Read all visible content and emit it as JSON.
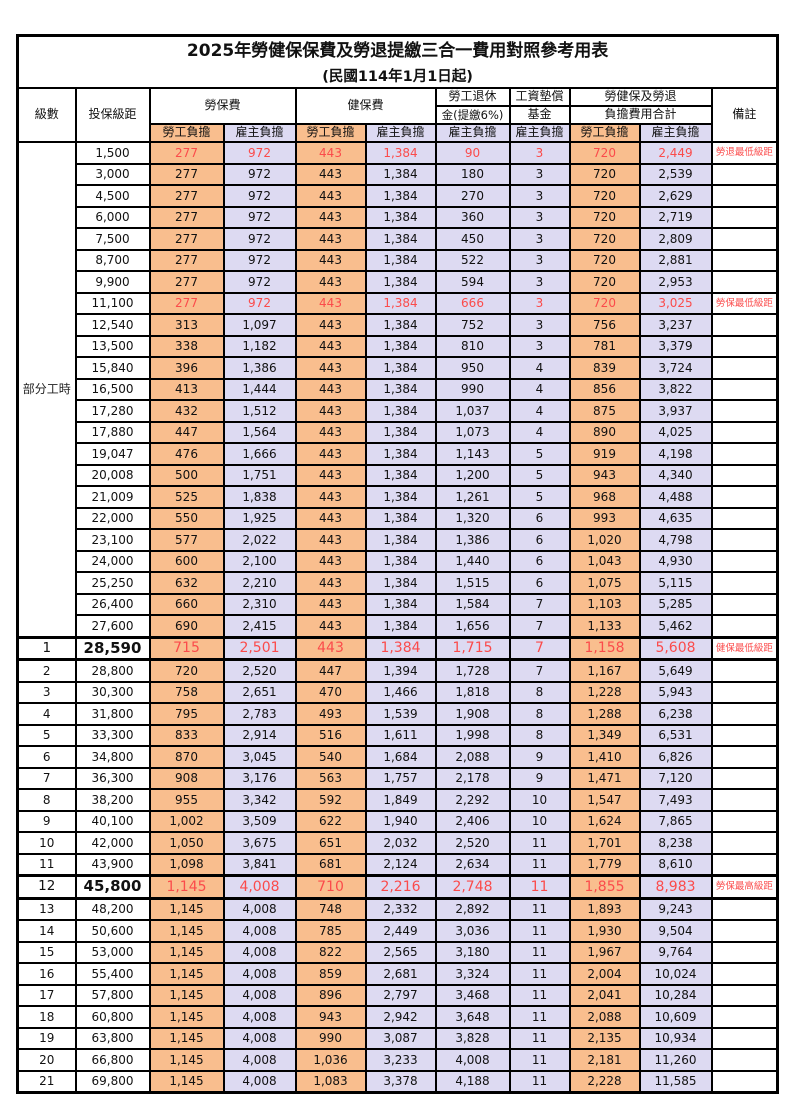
{
  "title": "2025年勞健保保費及勞退提繳三合一費用對照參考用表",
  "subtitle": "(民國114年1月1日起)",
  "header": {
    "level": "級數",
    "bracket": "投保級距",
    "labor_fee": "勞保費",
    "health_fee": "健保費",
    "pension_line1": "勞工退休",
    "pension_line2": "金(提繳6%)",
    "wage_fund_line1": "工資墊償",
    "wage_fund_line2": "基金",
    "total_line1": "勞健保及勞退",
    "total_line2": "負擔費用合計",
    "note": "備註",
    "employee_share": "勞工負擔",
    "employer_share": "雇主負擔"
  },
  "part_time_label": "部分工時",
  "part_time_rowspan": 23,
  "colors": {
    "employee_bg": "#F9BE8E",
    "employer_bg": "#DDDAF2",
    "highlight_text": "#FB4B4B",
    "border": "#000000",
    "text": "#111111"
  },
  "rows": [
    {
      "level": "",
      "bracket": "1,500",
      "labor_emp": "277",
      "labor_er": "972",
      "health_emp": "443",
      "health_er": "1,384",
      "pension_er": "90",
      "fund_er": "3",
      "total_emp": "720",
      "total_er": "2,449",
      "note": "勞退最低級距",
      "red": true,
      "big": false
    },
    {
      "level": "",
      "bracket": "3,000",
      "labor_emp": "277",
      "labor_er": "972",
      "health_emp": "443",
      "health_er": "1,384",
      "pension_er": "180",
      "fund_er": "3",
      "total_emp": "720",
      "total_er": "2,539",
      "note": "",
      "red": false,
      "big": false
    },
    {
      "level": "",
      "bracket": "4,500",
      "labor_emp": "277",
      "labor_er": "972",
      "health_emp": "443",
      "health_er": "1,384",
      "pension_er": "270",
      "fund_er": "3",
      "total_emp": "720",
      "total_er": "2,629",
      "note": "",
      "red": false,
      "big": false
    },
    {
      "level": "",
      "bracket": "6,000",
      "labor_emp": "277",
      "labor_er": "972",
      "health_emp": "443",
      "health_er": "1,384",
      "pension_er": "360",
      "fund_er": "3",
      "total_emp": "720",
      "total_er": "2,719",
      "note": "",
      "red": false,
      "big": false
    },
    {
      "level": "",
      "bracket": "7,500",
      "labor_emp": "277",
      "labor_er": "972",
      "health_emp": "443",
      "health_er": "1,384",
      "pension_er": "450",
      "fund_er": "3",
      "total_emp": "720",
      "total_er": "2,809",
      "note": "",
      "red": false,
      "big": false
    },
    {
      "level": "",
      "bracket": "8,700",
      "labor_emp": "277",
      "labor_er": "972",
      "health_emp": "443",
      "health_er": "1,384",
      "pension_er": "522",
      "fund_er": "3",
      "total_emp": "720",
      "total_er": "2,881",
      "note": "",
      "red": false,
      "big": false
    },
    {
      "level": "",
      "bracket": "9,900",
      "labor_emp": "277",
      "labor_er": "972",
      "health_emp": "443",
      "health_er": "1,384",
      "pension_er": "594",
      "fund_er": "3",
      "total_emp": "720",
      "total_er": "2,953",
      "note": "",
      "red": false,
      "big": false
    },
    {
      "level": "",
      "bracket": "11,100",
      "labor_emp": "277",
      "labor_er": "972",
      "health_emp": "443",
      "health_er": "1,384",
      "pension_er": "666",
      "fund_er": "3",
      "total_emp": "720",
      "total_er": "3,025",
      "note": "勞保最低級距",
      "red": true,
      "big": false
    },
    {
      "level": "",
      "bracket": "12,540",
      "labor_emp": "313",
      "labor_er": "1,097",
      "health_emp": "443",
      "health_er": "1,384",
      "pension_er": "752",
      "fund_er": "3",
      "total_emp": "756",
      "total_er": "3,237",
      "note": "",
      "red": false,
      "big": false
    },
    {
      "level": "",
      "bracket": "13,500",
      "labor_emp": "338",
      "labor_er": "1,182",
      "health_emp": "443",
      "health_er": "1,384",
      "pension_er": "810",
      "fund_er": "3",
      "total_emp": "781",
      "total_er": "3,379",
      "note": "",
      "red": false,
      "big": false
    },
    {
      "level": "",
      "bracket": "15,840",
      "labor_emp": "396",
      "labor_er": "1,386",
      "health_emp": "443",
      "health_er": "1,384",
      "pension_er": "950",
      "fund_er": "4",
      "total_emp": "839",
      "total_er": "3,724",
      "note": "",
      "red": false,
      "big": false
    },
    {
      "level": "",
      "bracket": "16,500",
      "labor_emp": "413",
      "labor_er": "1,444",
      "health_emp": "443",
      "health_er": "1,384",
      "pension_er": "990",
      "fund_er": "4",
      "total_emp": "856",
      "total_er": "3,822",
      "note": "",
      "red": false,
      "big": false
    },
    {
      "level": "",
      "bracket": "17,280",
      "labor_emp": "432",
      "labor_er": "1,512",
      "health_emp": "443",
      "health_er": "1,384",
      "pension_er": "1,037",
      "fund_er": "4",
      "total_emp": "875",
      "total_er": "3,937",
      "note": "",
      "red": false,
      "big": false
    },
    {
      "level": "",
      "bracket": "17,880",
      "labor_emp": "447",
      "labor_er": "1,564",
      "health_emp": "443",
      "health_er": "1,384",
      "pension_er": "1,073",
      "fund_er": "4",
      "total_emp": "890",
      "total_er": "4,025",
      "note": "",
      "red": false,
      "big": false
    },
    {
      "level": "",
      "bracket": "19,047",
      "labor_emp": "476",
      "labor_er": "1,666",
      "health_emp": "443",
      "health_er": "1,384",
      "pension_er": "1,143",
      "fund_er": "5",
      "total_emp": "919",
      "total_er": "4,198",
      "note": "",
      "red": false,
      "big": false
    },
    {
      "level": "",
      "bracket": "20,008",
      "labor_emp": "500",
      "labor_er": "1,751",
      "health_emp": "443",
      "health_er": "1,384",
      "pension_er": "1,200",
      "fund_er": "5",
      "total_emp": "943",
      "total_er": "4,340",
      "note": "",
      "red": false,
      "big": false
    },
    {
      "level": "",
      "bracket": "21,009",
      "labor_emp": "525",
      "labor_er": "1,838",
      "health_emp": "443",
      "health_er": "1,384",
      "pension_er": "1,261",
      "fund_er": "5",
      "total_emp": "968",
      "total_er": "4,488",
      "note": "",
      "red": false,
      "big": false
    },
    {
      "level": "",
      "bracket": "22,000",
      "labor_emp": "550",
      "labor_er": "1,925",
      "health_emp": "443",
      "health_er": "1,384",
      "pension_er": "1,320",
      "fund_er": "6",
      "total_emp": "993",
      "total_er": "4,635",
      "note": "",
      "red": false,
      "big": false
    },
    {
      "level": "",
      "bracket": "23,100",
      "labor_emp": "577",
      "labor_er": "2,022",
      "health_emp": "443",
      "health_er": "1,384",
      "pension_er": "1,386",
      "fund_er": "6",
      "total_emp": "1,020",
      "total_er": "4,798",
      "note": "",
      "red": false,
      "big": false
    },
    {
      "level": "",
      "bracket": "24,000",
      "labor_emp": "600",
      "labor_er": "2,100",
      "health_emp": "443",
      "health_er": "1,384",
      "pension_er": "1,440",
      "fund_er": "6",
      "total_emp": "1,043",
      "total_er": "4,930",
      "note": "",
      "red": false,
      "big": false
    },
    {
      "level": "",
      "bracket": "25,250",
      "labor_emp": "632",
      "labor_er": "2,210",
      "health_emp": "443",
      "health_er": "1,384",
      "pension_er": "1,515",
      "fund_er": "6",
      "total_emp": "1,075",
      "total_er": "5,115",
      "note": "",
      "red": false,
      "big": false
    },
    {
      "level": "",
      "bracket": "26,400",
      "labor_emp": "660",
      "labor_er": "2,310",
      "health_emp": "443",
      "health_er": "1,384",
      "pension_er": "1,584",
      "fund_er": "7",
      "total_emp": "1,103",
      "total_er": "5,285",
      "note": "",
      "red": false,
      "big": false
    },
    {
      "level": "",
      "bracket": "27,600",
      "labor_emp": "690",
      "labor_er": "2,415",
      "health_emp": "443",
      "health_er": "1,384",
      "pension_er": "1,656",
      "fund_er": "7",
      "total_emp": "1,133",
      "total_er": "5,462",
      "note": "",
      "red": false,
      "big": false
    },
    {
      "level": "1",
      "bracket": "28,590",
      "labor_emp": "715",
      "labor_er": "2,501",
      "health_emp": "443",
      "health_er": "1,384",
      "pension_er": "1,715",
      "fund_er": "7",
      "total_emp": "1,158",
      "total_er": "5,608",
      "note": "健保最低級距",
      "red": true,
      "big": true
    },
    {
      "level": "2",
      "bracket": "28,800",
      "labor_emp": "720",
      "labor_er": "2,520",
      "health_emp": "447",
      "health_er": "1,394",
      "pension_er": "1,728",
      "fund_er": "7",
      "total_emp": "1,167",
      "total_er": "5,649",
      "note": "",
      "red": false,
      "big": false
    },
    {
      "level": "3",
      "bracket": "30,300",
      "labor_emp": "758",
      "labor_er": "2,651",
      "health_emp": "470",
      "health_er": "1,466",
      "pension_er": "1,818",
      "fund_er": "8",
      "total_emp": "1,228",
      "total_er": "5,943",
      "note": "",
      "red": false,
      "big": false
    },
    {
      "level": "4",
      "bracket": "31,800",
      "labor_emp": "795",
      "labor_er": "2,783",
      "health_emp": "493",
      "health_er": "1,539",
      "pension_er": "1,908",
      "fund_er": "8",
      "total_emp": "1,288",
      "total_er": "6,238",
      "note": "",
      "red": false,
      "big": false
    },
    {
      "level": "5",
      "bracket": "33,300",
      "labor_emp": "833",
      "labor_er": "2,914",
      "health_emp": "516",
      "health_er": "1,611",
      "pension_er": "1,998",
      "fund_er": "8",
      "total_emp": "1,349",
      "total_er": "6,531",
      "note": "",
      "red": false,
      "big": false
    },
    {
      "level": "6",
      "bracket": "34,800",
      "labor_emp": "870",
      "labor_er": "3,045",
      "health_emp": "540",
      "health_er": "1,684",
      "pension_er": "2,088",
      "fund_er": "9",
      "total_emp": "1,410",
      "total_er": "6,826",
      "note": "",
      "red": false,
      "big": false
    },
    {
      "level": "7",
      "bracket": "36,300",
      "labor_emp": "908",
      "labor_er": "3,176",
      "health_emp": "563",
      "health_er": "1,757",
      "pension_er": "2,178",
      "fund_er": "9",
      "total_emp": "1,471",
      "total_er": "7,120",
      "note": "",
      "red": false,
      "big": false
    },
    {
      "level": "8",
      "bracket": "38,200",
      "labor_emp": "955",
      "labor_er": "3,342",
      "health_emp": "592",
      "health_er": "1,849",
      "pension_er": "2,292",
      "fund_er": "10",
      "total_emp": "1,547",
      "total_er": "7,493",
      "note": "",
      "red": false,
      "big": false
    },
    {
      "level": "9",
      "bracket": "40,100",
      "labor_emp": "1,002",
      "labor_er": "3,509",
      "health_emp": "622",
      "health_er": "1,940",
      "pension_er": "2,406",
      "fund_er": "10",
      "total_emp": "1,624",
      "total_er": "7,865",
      "note": "",
      "red": false,
      "big": false
    },
    {
      "level": "10",
      "bracket": "42,000",
      "labor_emp": "1,050",
      "labor_er": "3,675",
      "health_emp": "651",
      "health_er": "2,032",
      "pension_er": "2,520",
      "fund_er": "11",
      "total_emp": "1,701",
      "total_er": "8,238",
      "note": "",
      "red": false,
      "big": false
    },
    {
      "level": "11",
      "bracket": "43,900",
      "labor_emp": "1,098",
      "labor_er": "3,841",
      "health_emp": "681",
      "health_er": "2,124",
      "pension_er": "2,634",
      "fund_er": "11",
      "total_emp": "1,779",
      "total_er": "8,610",
      "note": "",
      "red": false,
      "big": false
    },
    {
      "level": "12",
      "bracket": "45,800",
      "labor_emp": "1,145",
      "labor_er": "4,008",
      "health_emp": "710",
      "health_er": "2,216",
      "pension_er": "2,748",
      "fund_er": "11",
      "total_emp": "1,855",
      "total_er": "8,983",
      "note": "勞保最高級距",
      "red": true,
      "big": true
    },
    {
      "level": "13",
      "bracket": "48,200",
      "labor_emp": "1,145",
      "labor_er": "4,008",
      "health_emp": "748",
      "health_er": "2,332",
      "pension_er": "2,892",
      "fund_er": "11",
      "total_emp": "1,893",
      "total_er": "9,243",
      "note": "",
      "red": false,
      "big": false
    },
    {
      "level": "14",
      "bracket": "50,600",
      "labor_emp": "1,145",
      "labor_er": "4,008",
      "health_emp": "785",
      "health_er": "2,449",
      "pension_er": "3,036",
      "fund_er": "11",
      "total_emp": "1,930",
      "total_er": "9,504",
      "note": "",
      "red": false,
      "big": false
    },
    {
      "level": "15",
      "bracket": "53,000",
      "labor_emp": "1,145",
      "labor_er": "4,008",
      "health_emp": "822",
      "health_er": "2,565",
      "pension_er": "3,180",
      "fund_er": "11",
      "total_emp": "1,967",
      "total_er": "9,764",
      "note": "",
      "red": false,
      "big": false
    },
    {
      "level": "16",
      "bracket": "55,400",
      "labor_emp": "1,145",
      "labor_er": "4,008",
      "health_emp": "859",
      "health_er": "2,681",
      "pension_er": "3,324",
      "fund_er": "11",
      "total_emp": "2,004",
      "total_er": "10,024",
      "note": "",
      "red": false,
      "big": false
    },
    {
      "level": "17",
      "bracket": "57,800",
      "labor_emp": "1,145",
      "labor_er": "4,008",
      "health_emp": "896",
      "health_er": "2,797",
      "pension_er": "3,468",
      "fund_er": "11",
      "total_emp": "2,041",
      "total_er": "10,284",
      "note": "",
      "red": false,
      "big": false
    },
    {
      "level": "18",
      "bracket": "60,800",
      "labor_emp": "1,145",
      "labor_er": "4,008",
      "health_emp": "943",
      "health_er": "2,942",
      "pension_er": "3,648",
      "fund_er": "11",
      "total_emp": "2,088",
      "total_er": "10,609",
      "note": "",
      "red": false,
      "big": false
    },
    {
      "level": "19",
      "bracket": "63,800",
      "labor_emp": "1,145",
      "labor_er": "4,008",
      "health_emp": "990",
      "health_er": "3,087",
      "pension_er": "3,828",
      "fund_er": "11",
      "total_emp": "2,135",
      "total_er": "10,934",
      "note": "",
      "red": false,
      "big": false
    },
    {
      "level": "20",
      "bracket": "66,800",
      "labor_emp": "1,145",
      "labor_er": "4,008",
      "health_emp": "1,036",
      "health_er": "3,233",
      "pension_er": "4,008",
      "fund_er": "11",
      "total_emp": "2,181",
      "total_er": "11,260",
      "note": "",
      "red": false,
      "big": false
    },
    {
      "level": "21",
      "bracket": "69,800",
      "labor_emp": "1,145",
      "labor_er": "4,008",
      "health_emp": "1,083",
      "health_er": "3,378",
      "pension_er": "4,188",
      "fund_er": "11",
      "total_emp": "2,228",
      "total_er": "11,585",
      "note": "",
      "red": false,
      "big": false
    }
  ]
}
